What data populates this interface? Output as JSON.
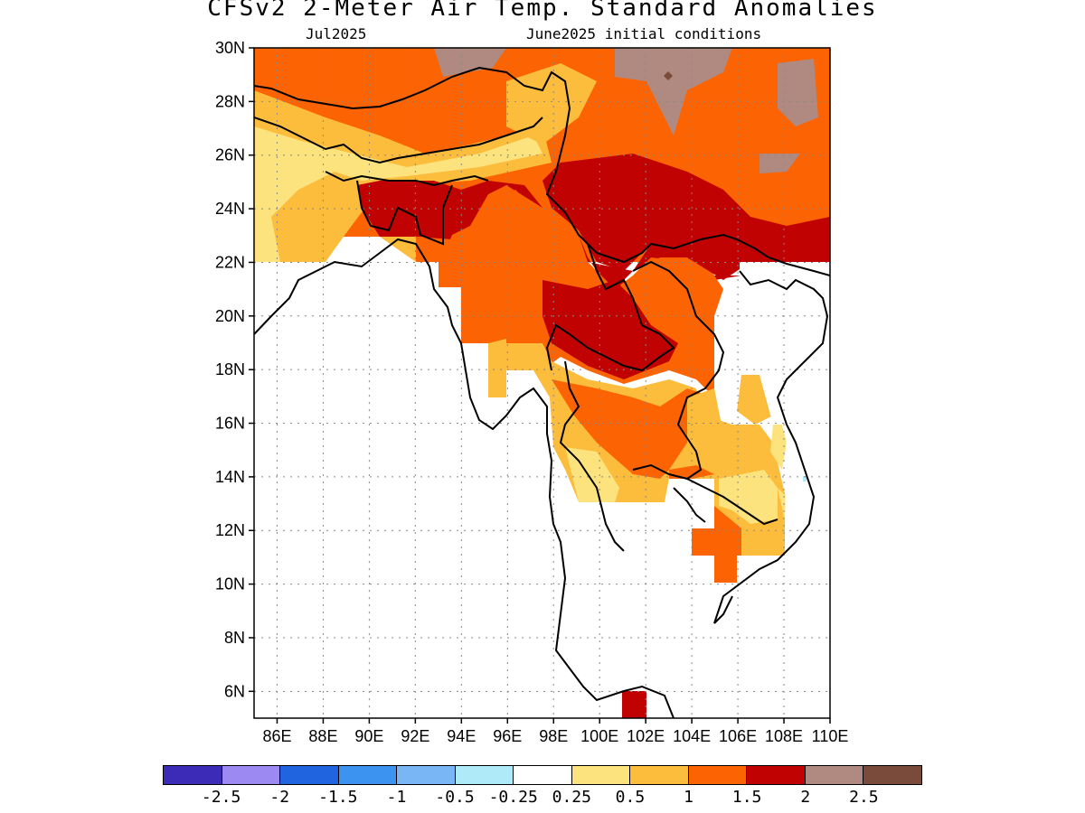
{
  "title": "CFSv2 2-Meter Air Temp. Standard Anomalies",
  "subtitle_left": "Jul2025",
  "subtitle_right": "June2025 initial conditions",
  "map": {
    "lon_range": [
      85,
      110
    ],
    "lat_range": [
      5,
      30
    ],
    "lat_ticks": [
      "30N",
      "28N",
      "26N",
      "24N",
      "22N",
      "20N",
      "18N",
      "16N",
      "14N",
      "12N",
      "10N",
      "8N",
      "6N"
    ],
    "lon_ticks": [
      "86E",
      "88E",
      "90E",
      "92E",
      "94E",
      "96E",
      "98E",
      "100E",
      "102E",
      "104E",
      "106E",
      "108E",
      "110E"
    ],
    "gridlines": "dotted"
  },
  "colorbar": {
    "colors": [
      "#3b2bb7",
      "#9c8af2",
      "#2064e0",
      "#3d93f0",
      "#78b6f5",
      "#aeeaf8",
      "#ffffff",
      "#fde37e",
      "#fcbc3c",
      "#fc6302",
      "#c00202",
      "#b08a80",
      "#7a4a3a"
    ],
    "labels": [
      "-2.5",
      "-2",
      "-1.5",
      "-1",
      "-0.5",
      "-0.25",
      "0.25",
      "0.5",
      "1",
      "1.5",
      "2",
      "2.5"
    ]
  }
}
